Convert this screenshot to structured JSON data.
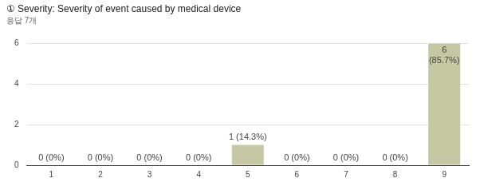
{
  "chart_data": {
    "type": "bar",
    "title": "① Severity: Severity of event caused by medical device",
    "subtitle": "응답 7개",
    "categories": [
      "1",
      "2",
      "3",
      "4",
      "5",
      "6",
      "7",
      "8",
      "9"
    ],
    "values": [
      0,
      0,
      0,
      0,
      1,
      0,
      0,
      0,
      6
    ],
    "value_labels": [
      "0 (0%)",
      "0 (0%)",
      "0 (0%)",
      "0 (0%)",
      "1 (14.3%)",
      "0 (0%)",
      "0 (0%)",
      "0 (0%)",
      "6 (85.7%)"
    ],
    "color": "#c6c8a4",
    "ylim": [
      0,
      6
    ],
    "yticks": [
      0,
      2,
      4,
      6
    ],
    "grid": true,
    "data_labels": true
  }
}
